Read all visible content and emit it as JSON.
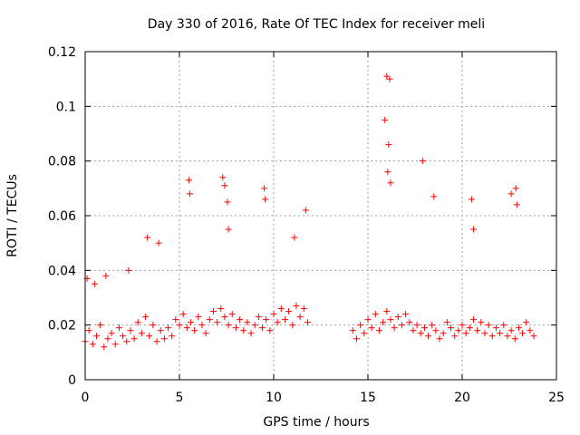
{
  "chart_data": {
    "type": "scatter",
    "title": "Day 330 of 2016, Rate Of TEC Index for receiver meli",
    "xlabel": "GPS time / hours",
    "ylabel": "ROTI / TECUs",
    "xlim": [
      0,
      25
    ],
    "ylim": [
      0,
      0.12
    ],
    "xticks": [
      0,
      5,
      10,
      15,
      20,
      25
    ],
    "yticks": [
      0,
      0.02,
      0.04,
      0.06,
      0.08,
      0.1,
      0.12
    ],
    "xtick_labels": [
      "0",
      "5",
      "10",
      "15",
      "20",
      "25"
    ],
    "ytick_labels": [
      "0",
      "0.02",
      "0.04",
      "0.06",
      "0.08",
      "0.1",
      "0.12"
    ],
    "grid": true,
    "marker": "+",
    "color": "#ff0000",
    "series": [
      {
        "x": [
          0.0,
          0.2,
          0.4,
          0.6,
          0.8,
          1.0,
          1.2,
          1.4,
          1.6,
          1.8,
          2.0,
          2.2,
          2.4,
          2.6,
          2.8,
          3.0,
          3.2,
          3.4,
          3.6,
          3.8,
          4.0,
          4.2,
          4.4,
          4.6,
          4.8,
          5.0,
          5.2,
          5.4,
          5.6,
          5.8,
          6.0,
          6.2,
          6.4,
          6.6,
          6.8,
          7.0,
          7.2,
          7.4,
          7.6,
          7.8,
          8.0,
          8.2,
          8.4,
          8.6,
          8.8,
          9.0,
          9.2,
          9.4,
          9.6,
          9.8,
          10.0,
          10.2,
          10.4,
          10.6,
          10.8,
          11.0,
          11.2,
          11.4,
          11.6,
          11.8,
          14.2,
          14.4,
          14.6,
          14.8,
          15.0,
          15.2,
          15.4,
          15.6,
          15.8,
          16.0,
          16.2,
          16.4,
          16.6,
          16.8,
          17.0,
          17.2,
          17.4,
          17.6,
          17.8,
          18.0,
          18.2,
          18.4,
          18.6,
          18.8,
          19.0,
          19.2,
          19.4,
          19.6,
          19.8,
          20.0,
          20.2,
          20.4,
          20.6,
          20.8,
          21.0,
          21.2,
          21.4,
          21.6,
          21.8,
          22.0,
          22.2,
          22.4,
          22.6,
          22.8,
          23.0,
          23.2,
          23.4,
          23.6,
          23.8,
          0.1,
          0.5,
          1.1,
          2.3,
          3.3,
          3.9,
          5.5,
          5.55,
          7.3,
          7.4,
          7.6,
          7.55,
          9.5,
          9.55,
          11.1,
          11.7,
          15.9,
          16.0,
          16.1,
          16.15,
          16.05,
          16.2,
          17.9,
          18.5,
          20.5,
          20.6,
          22.6,
          22.85,
          22.9
        ],
        "y": [
          0.014,
          0.018,
          0.013,
          0.016,
          0.02,
          0.012,
          0.015,
          0.017,
          0.013,
          0.019,
          0.016,
          0.014,
          0.018,
          0.015,
          0.021,
          0.017,
          0.023,
          0.016,
          0.02,
          0.014,
          0.018,
          0.015,
          0.019,
          0.016,
          0.022,
          0.02,
          0.024,
          0.019,
          0.021,
          0.018,
          0.023,
          0.02,
          0.017,
          0.022,
          0.025,
          0.021,
          0.026,
          0.023,
          0.02,
          0.024,
          0.019,
          0.022,
          0.018,
          0.021,
          0.017,
          0.02,
          0.023,
          0.019,
          0.022,
          0.018,
          0.024,
          0.021,
          0.026,
          0.022,
          0.025,
          0.02,
          0.027,
          0.023,
          0.026,
          0.021,
          0.018,
          0.015,
          0.02,
          0.017,
          0.022,
          0.019,
          0.024,
          0.018,
          0.021,
          0.025,
          0.022,
          0.019,
          0.023,
          0.02,
          0.024,
          0.021,
          0.018,
          0.02,
          0.017,
          0.019,
          0.016,
          0.02,
          0.018,
          0.015,
          0.017,
          0.021,
          0.019,
          0.016,
          0.018,
          0.02,
          0.017,
          0.019,
          0.022,
          0.018,
          0.021,
          0.017,
          0.02,
          0.016,
          0.019,
          0.017,
          0.02,
          0.016,
          0.018,
          0.015,
          0.019,
          0.017,
          0.021,
          0.018,
          0.016,
          0.037,
          0.035,
          0.038,
          0.04,
          0.052,
          0.05,
          0.073,
          0.068,
          0.074,
          0.071,
          0.055,
          0.065,
          0.07,
          0.066,
          0.052,
          0.062,
          0.095,
          0.111,
          0.086,
          0.11,
          0.076,
          0.072,
          0.08,
          0.067,
          0.066,
          0.055,
          0.068,
          0.07,
          0.064
        ]
      }
    ]
  }
}
